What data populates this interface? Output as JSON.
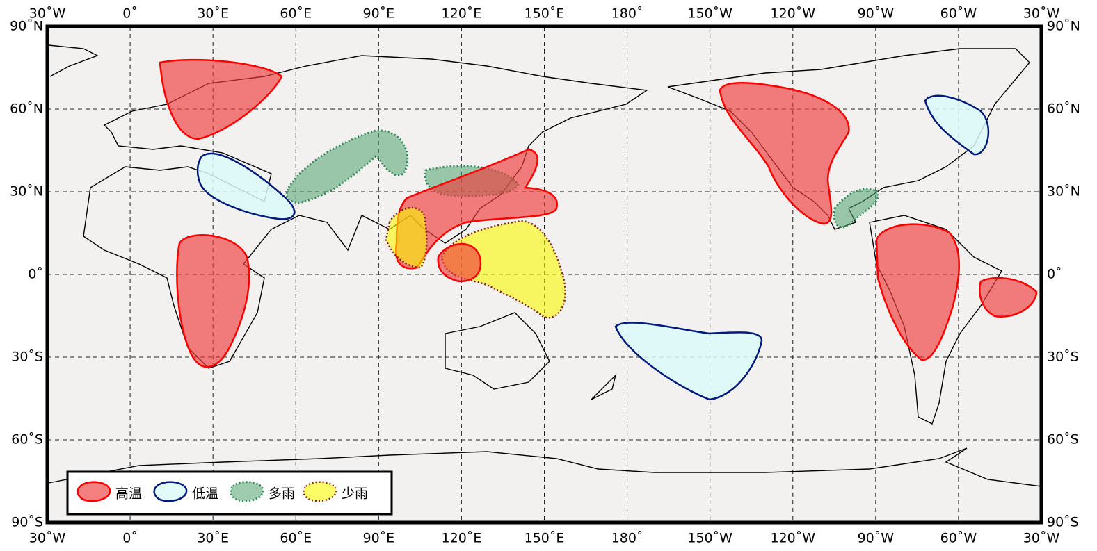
{
  "map": {
    "lon_ticks": [
      {
        "value": -30,
        "label": "30˚W"
      },
      {
        "value": 0,
        "label": "0˚"
      },
      {
        "value": 30,
        "label": "30˚E"
      },
      {
        "value": 60,
        "label": "60˚E"
      },
      {
        "value": 90,
        "label": "90˚E"
      },
      {
        "value": 120,
        "label": "120˚E"
      },
      {
        "value": 150,
        "label": "150˚E"
      },
      {
        "value": 180,
        "label": "180˚"
      },
      {
        "value": 210,
        "label": "150˚W"
      },
      {
        "value": 240,
        "label": "120˚W"
      },
      {
        "value": 270,
        "label": "90˚W"
      },
      {
        "value": 300,
        "label": "60˚W"
      },
      {
        "value": 330,
        "label": "30˚W"
      }
    ],
    "lat_ticks": [
      {
        "value": 90,
        "label": "90˚N"
      },
      {
        "value": 60,
        "label": "60˚N"
      },
      {
        "value": 30,
        "label": "30˚N"
      },
      {
        "value": 0,
        "label": "0˚"
      },
      {
        "value": -30,
        "label": "30˚S"
      },
      {
        "value": -60,
        "label": "60˚S"
      },
      {
        "value": -90,
        "label": "90˚S"
      }
    ],
    "legend": [
      "高温",
      "低温",
      "多雨",
      "少雨"
    ]
  }
}
